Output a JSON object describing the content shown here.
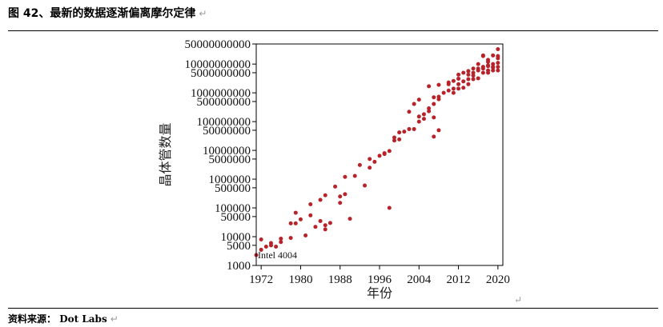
{
  "header": {
    "title": "图 42、最新的数据逐渐偏离摩尔定律",
    "return_mark": "↵"
  },
  "footer": {
    "label": "资料来源：",
    "source": "Dot Labs",
    "return_mark": "↵"
  },
  "end_mark": "↵",
  "colors": {
    "point": "#b8232a",
    "axis": "#000000"
  },
  "chart_data": {
    "type": "scatter",
    "title": "",
    "xlabel": "年份",
    "ylabel": "晶体管数量",
    "xscale": "linear",
    "yscale": "log",
    "xlim": [
      1971,
      2021
    ],
    "ylim": [
      1000,
      50000000000
    ],
    "grid": false,
    "x_ticks": [
      1972,
      1980,
      1988,
      1996,
      2004,
      2012,
      2020
    ],
    "x_tick_labels": [
      "1972",
      "1980",
      "1988",
      "1996",
      "2004",
      "2012",
      "2020"
    ],
    "y_ticks": [
      1000,
      5000,
      10000,
      50000,
      100000,
      500000,
      1000000,
      5000000,
      10000000,
      50000000,
      100000000,
      500000000,
      1000000000,
      5000000000,
      10000000000,
      50000000000
    ],
    "y_tick_labels": [
      "1000",
      "5000",
      "10000",
      "50000",
      "100000",
      "500000",
      "1000000",
      "5000000",
      "10000000",
      "50000000",
      "100000000",
      "500000000",
      "1000000000",
      "5000000000",
      "10000000000",
      "50000000000"
    ],
    "annotations": [
      {
        "text": "Intel 4004",
        "x": 1971,
        "y": 2300
      }
    ],
    "series": [
      {
        "points": [
          [
            1971,
            2300
          ],
          [
            1972,
            3500
          ],
          [
            1972,
            8000
          ],
          [
            1973,
            4500
          ],
          [
            1974,
            6000
          ],
          [
            1974,
            5000
          ],
          [
            1975,
            4500
          ],
          [
            1976,
            6500
          ],
          [
            1976,
            8500
          ],
          [
            1978,
            9000
          ],
          [
            1978,
            29000
          ],
          [
            1979,
            29000
          ],
          [
            1979,
            68000
          ],
          [
            1980,
            40000
          ],
          [
            1981,
            11000
          ],
          [
            1982,
            55000
          ],
          [
            1982,
            134000
          ],
          [
            1983,
            22000
          ],
          [
            1984,
            35000
          ],
          [
            1984,
            190000
          ],
          [
            1985,
            275000
          ],
          [
            1985,
            18000
          ],
          [
            1985,
            25000
          ],
          [
            1986,
            30000
          ],
          [
            1987,
            550000
          ],
          [
            1988,
            250000
          ],
          [
            1988,
            150000
          ],
          [
            1989,
            300000
          ],
          [
            1989,
            1200000
          ],
          [
            1990,
            42000
          ],
          [
            1991,
            1300000
          ],
          [
            1992,
            3100000
          ],
          [
            1993,
            600000
          ],
          [
            1994,
            5000000
          ],
          [
            1994,
            2500000
          ],
          [
            1995,
            4000000
          ],
          [
            1996,
            6500000
          ],
          [
            1997,
            7500000
          ],
          [
            1997,
            8000000
          ],
          [
            1998,
            100000
          ],
          [
            1998,
            9500000
          ],
          [
            1999,
            22000000
          ],
          [
            1999,
            28000000
          ],
          [
            2000,
            24000000
          ],
          [
            2000,
            42000000
          ],
          [
            2001,
            45000000
          ],
          [
            2002,
            55000000
          ],
          [
            2002,
            220000000
          ],
          [
            2003,
            410000000
          ],
          [
            2003,
            55000000
          ],
          [
            2004,
            580000000
          ],
          [
            2004,
            100000000
          ],
          [
            2004,
            150000000
          ],
          [
            2005,
            180000000
          ],
          [
            2005,
            125000000
          ],
          [
            2006,
            230000000
          ],
          [
            2006,
            1700000000
          ],
          [
            2006,
            290000000
          ],
          [
            2007,
            410000000
          ],
          [
            2007,
            140000000
          ],
          [
            2007,
            700000000
          ],
          [
            2007,
            30000000
          ],
          [
            2008,
            50000000
          ],
          [
            2008,
            600000000
          ],
          [
            2008,
            1900000000
          ],
          [
            2008,
            730000000
          ],
          [
            2009,
            1000000000
          ],
          [
            2010,
            2300000000
          ],
          [
            2010,
            1200000000
          ],
          [
            2010,
            2000000000
          ],
          [
            2011,
            1400000000
          ],
          [
            2011,
            2600000000
          ],
          [
            2011,
            1000000000
          ],
          [
            2012,
            3100000000
          ],
          [
            2012,
            1400000000
          ],
          [
            2012,
            2000000000
          ],
          [
            2012,
            4300000000
          ],
          [
            2013,
            2500000000
          ],
          [
            2013,
            5000000000
          ],
          [
            2013,
            1500000000
          ],
          [
            2014,
            4300000000
          ],
          [
            2014,
            2000000000
          ],
          [
            2014,
            5700000000
          ],
          [
            2014,
            3000000000
          ],
          [
            2015,
            7000000000
          ],
          [
            2015,
            3000000000
          ],
          [
            2015,
            5000000000
          ],
          [
            2016,
            10000000000
          ],
          [
            2016,
            3200000000
          ],
          [
            2016,
            7000000000
          ],
          [
            2017,
            8000000000
          ],
          [
            2017,
            19000000000
          ],
          [
            2017,
            5000000000
          ],
          [
            2017,
            7000000000
          ],
          [
            2018,
            9000000000
          ],
          [
            2018,
            6000000000
          ],
          [
            2018,
            12000000000
          ],
          [
            2018,
            8500000000
          ],
          [
            2019,
            10000000000
          ],
          [
            2019,
            20000000000
          ],
          [
            2019,
            6000000000
          ],
          [
            2019,
            8000000000
          ],
          [
            2020,
            16000000000
          ],
          [
            2020,
            11000000000
          ],
          [
            2020,
            33000000000
          ],
          [
            2020,
            6000000000
          ],
          [
            2020,
            8000000000
          ],
          [
            2020,
            19000000000
          ],
          [
            2017,
            20000000000
          ],
          [
            2018,
            14000000000
          ],
          [
            2019,
            7500000000
          ],
          [
            2016,
            6000000000
          ],
          [
            2015,
            4000000000
          ],
          [
            2018,
            5000000000
          ]
        ]
      }
    ]
  }
}
